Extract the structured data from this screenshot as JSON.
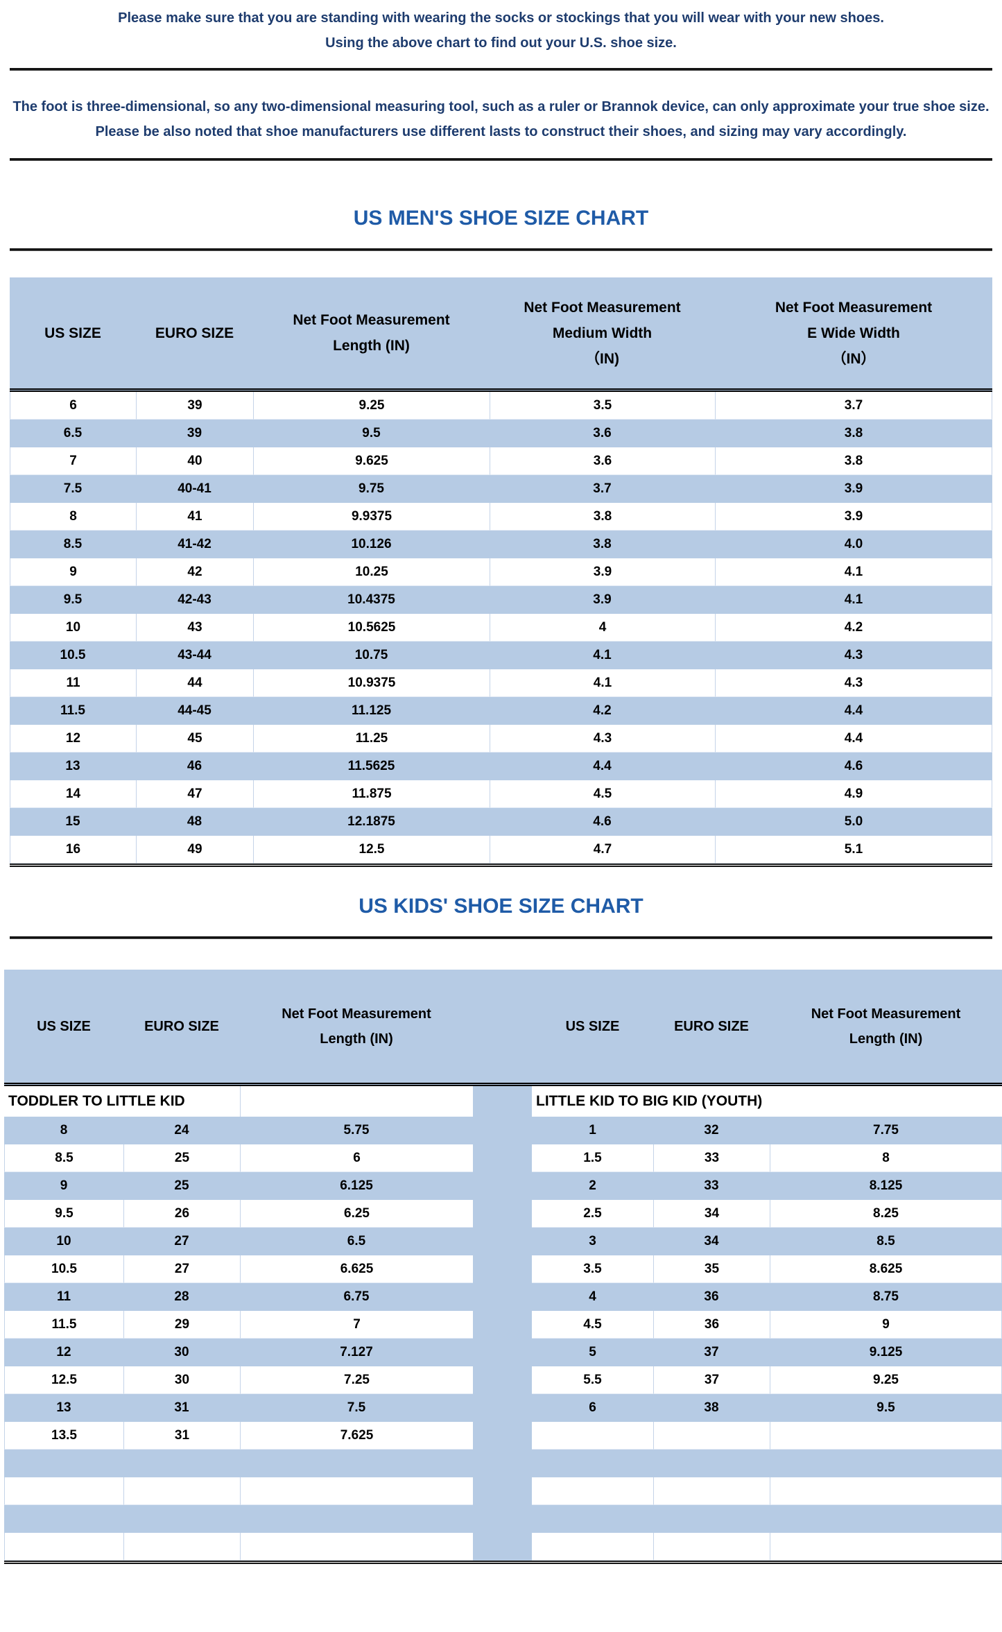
{
  "notes": {
    "note1": "Please make sure that you are standing with wearing the socks or stockings that you will wear with your new shoes.\nUsing the above chart to find out your U.S. shoe size.",
    "note2": "The foot is three-dimensional, so any two-dimensional measuring tool, such as a ruler or Brannok device, can only approximate your true shoe size. Please be also noted that shoe manufacturers use different lasts to construct their shoes, and sizing may vary accordingly."
  },
  "colors": {
    "stripe_blue": "#b6cbe4",
    "title_blue": "#1f5ba7",
    "note_navy": "#1e3c6e"
  },
  "mens_chart": {
    "title": "US MEN'S SHOE SIZE CHART",
    "columns": [
      "US SIZE",
      "EURO SIZE",
      "Net Foot Measurement\nLength (IN)",
      "Net Foot Measurement\nMedium Width\n（IN)",
      "Net Foot Measurement\nE Wide Width\n（IN）"
    ],
    "rows": [
      [
        "6",
        "39",
        "9.25",
        "3.5",
        "3.7"
      ],
      [
        "6.5",
        "39",
        "9.5",
        "3.6",
        "3.8"
      ],
      [
        "7",
        "40",
        "9.625",
        "3.6",
        "3.8"
      ],
      [
        "7.5",
        "40-41",
        "9.75",
        "3.7",
        "3.9"
      ],
      [
        "8",
        "41",
        "9.9375",
        "3.8",
        "3.9"
      ],
      [
        "8.5",
        "41-42",
        "10.126",
        "3.8",
        "4.0"
      ],
      [
        "9",
        "42",
        "10.25",
        "3.9",
        "4.1"
      ],
      [
        "9.5",
        "42-43",
        "10.4375",
        "3.9",
        "4.1"
      ],
      [
        "10",
        "43",
        "10.5625",
        "4",
        "4.2"
      ],
      [
        "10.5",
        "43-44",
        "10.75",
        "4.1",
        "4.3"
      ],
      [
        "11",
        "44",
        "10.9375",
        "4.1",
        "4.3"
      ],
      [
        "11.5",
        "44-45",
        "11.125",
        "4.2",
        "4.4"
      ],
      [
        "12",
        "45",
        "11.25",
        "4.3",
        "4.4"
      ],
      [
        "13",
        "46",
        "11.5625",
        "4.4",
        "4.6"
      ],
      [
        "14",
        "47",
        "11.875",
        "4.5",
        "4.9"
      ],
      [
        "15",
        "48",
        "12.1875",
        "4.6",
        "5.0"
      ],
      [
        "16",
        "49",
        "12.5",
        "4.7",
        "5.1"
      ]
    ]
  },
  "kids_chart": {
    "title": "US KIDS' SHOE SIZE CHART",
    "columns_left": [
      "US SIZE",
      "EURO SIZE",
      "Net Foot Measurement\nLength (IN)"
    ],
    "columns_right": [
      "US SIZE",
      "EURO SIZE",
      "Net Foot Measurement\nLength (IN)"
    ],
    "section_left": "TODDLER TO LITTLE KID",
    "section_right": "LITTLE KID TO BIG KID (YOUTH)",
    "rows": [
      [
        "8",
        "24",
        "5.75",
        "1",
        "32",
        "7.75"
      ],
      [
        "8.5",
        "25",
        "6",
        "1.5",
        "33",
        "8"
      ],
      [
        "9",
        "25",
        "6.125",
        "2",
        "33",
        "8.125"
      ],
      [
        "9.5",
        "26",
        "6.25",
        "2.5",
        "34",
        "8.25"
      ],
      [
        "10",
        "27",
        "6.5",
        "3",
        "34",
        "8.5"
      ],
      [
        "10.5",
        "27",
        "6.625",
        "3.5",
        "35",
        "8.625"
      ],
      [
        "11",
        "28",
        "6.75",
        "4",
        "36",
        "8.75"
      ],
      [
        "11.5",
        "29",
        "7",
        "4.5",
        "36",
        "9"
      ],
      [
        "12",
        "30",
        "7.127",
        "5",
        "37",
        "9.125"
      ],
      [
        "12.5",
        "30",
        "7.25",
        "5.5",
        "37",
        "9.25"
      ],
      [
        "13",
        "31",
        "7.5",
        "6",
        "38",
        "9.5"
      ],
      [
        "13.5",
        "31",
        "7.625",
        "",
        "",
        ""
      ],
      [
        "",
        "",
        "",
        "",
        "",
        ""
      ],
      [
        "",
        "",
        "",
        "",
        "",
        ""
      ],
      [
        "",
        "",
        "",
        "",
        "",
        ""
      ],
      [
        "",
        "",
        "",
        "",
        "",
        ""
      ]
    ]
  }
}
